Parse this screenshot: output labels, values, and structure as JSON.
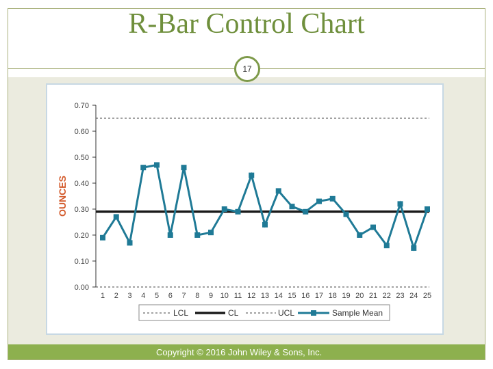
{
  "slide": {
    "title": "R-Bar Control Chart",
    "page_number": "17",
    "copyright": "Copyright © 2016 John Wiley & Sons, Inc."
  },
  "colors": {
    "title": "#6f8f3c",
    "series": "#1f7a96",
    "limit_lines": "#444444",
    "cl_line": "#1a1a1a",
    "ylabel": "#d35a2b",
    "footer": "#8db04e"
  },
  "chart_data": {
    "type": "line",
    "title": "",
    "xlabel": "",
    "ylabel": "OUNCES",
    "x": [
      1,
      2,
      3,
      4,
      5,
      6,
      7,
      8,
      9,
      10,
      11,
      12,
      13,
      14,
      15,
      16,
      17,
      18,
      19,
      20,
      21,
      22,
      23,
      24,
      25
    ],
    "ylim": [
      0.0,
      0.7
    ],
    "yticks": [
      "0.00",
      "0.10",
      "0.20",
      "0.30",
      "0.40",
      "0.50",
      "0.60",
      "0.70"
    ],
    "ytick_values": [
      0.0,
      0.1,
      0.2,
      0.3,
      0.4,
      0.5,
      0.6,
      0.7
    ],
    "series": [
      {
        "name": "Sample Mean",
        "values": [
          0.19,
          0.27,
          0.17,
          0.46,
          0.47,
          0.2,
          0.46,
          0.2,
          0.21,
          0.3,
          0.29,
          0.43,
          0.24,
          0.37,
          0.31,
          0.29,
          0.33,
          0.34,
          0.28,
          0.2,
          0.23,
          0.16,
          0.32,
          0.15,
          0.3
        ]
      }
    ],
    "lines": {
      "UCL": 0.65,
      "CL": 0.29,
      "LCL": 0.0
    },
    "grid": false,
    "legend": {
      "position": "bottom",
      "entries": [
        "LCL",
        "CL",
        "UCL",
        "Sample Mean"
      ]
    }
  }
}
